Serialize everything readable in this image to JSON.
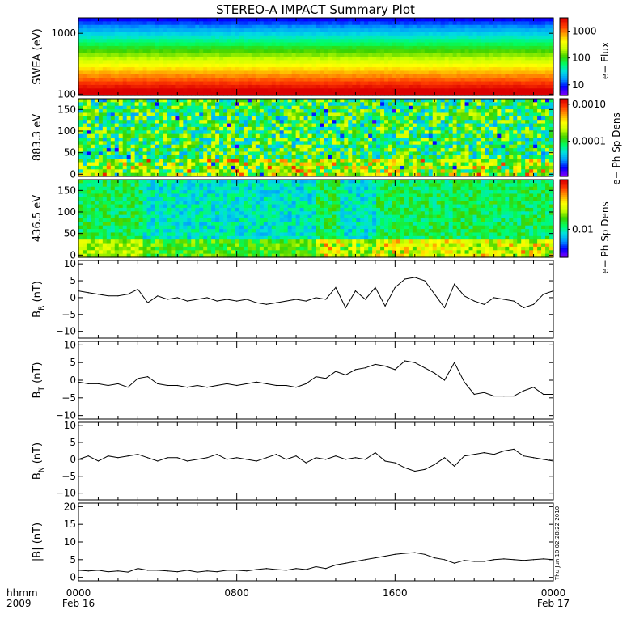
{
  "title": "STEREO-A IMPACT Summary Plot",
  "stamp": "Thu Jun 10 02:28:22 2010",
  "x_axis": {
    "row1_label": "hhmm",
    "row2_label": "2009",
    "ticks": [
      {
        "hours": 0,
        "time": "0000",
        "date": "Feb 16"
      },
      {
        "hours": 8,
        "time": "0800",
        "date": ""
      },
      {
        "hours": 16,
        "time": "1600",
        "date": ""
      },
      {
        "hours": 24,
        "time": "0000",
        "date": "Feb 17"
      }
    ],
    "range_hours": [
      0,
      24
    ]
  },
  "colors": {
    "spectrogram_scale": [
      "#7800ff",
      "#0000ff",
      "#0096ff",
      "#00e0e0",
      "#00ff64",
      "#3cd200",
      "#c8ff00",
      "#ffff00",
      "#ffa000",
      "#ff3c00",
      "#dc0000"
    ]
  },
  "chart_data": [
    {
      "type": "heatmap",
      "id": "swea",
      "ylabel": "SWEA (eV)",
      "ylim": [
        95,
        1800
      ],
      "yscale": "log",
      "ytick_labels": [
        "1000",
        "100"
      ],
      "ytick_values": [
        1000,
        100
      ],
      "colorbar_label": "e− Flux",
      "colorbar_ticks": [
        "1000",
        "100",
        "10"
      ],
      "colorbar_tick_values": [
        3,
        2,
        1
      ],
      "colorbar_range": [
        0.6,
        3.5
      ]
    },
    {
      "type": "heatmap",
      "id": "pad883",
      "ylabel": "883.3 eV",
      "ylim": [
        -5,
        175
      ],
      "ytick_labels": [
        "150",
        "100",
        "50",
        "0"
      ],
      "ytick_values": [
        150,
        100,
        50,
        0
      ],
      "colorbar_label": "e− Ph Sp Dens",
      "colorbar_ticks": [
        "0.0010",
        "0.0001"
      ],
      "colorbar_tick_values": [
        -3,
        -4
      ],
      "colorbar_range": [
        -4.95,
        -2.85
      ]
    },
    {
      "type": "heatmap",
      "id": "pad436",
      "ylabel": "436.5 eV",
      "ylim": [
        -5,
        175
      ],
      "ytick_labels": [
        "150",
        "100",
        "50",
        "0"
      ],
      "ytick_values": [
        150,
        100,
        50,
        0
      ],
      "colorbar_label": "e− Ph Sp Dens",
      "colorbar_ticks": [
        "0.01"
      ],
      "colorbar_tick_values": [
        -2
      ],
      "colorbar_range": [
        -2.45,
        -1.2
      ]
    },
    {
      "type": "line",
      "id": "br",
      "ylabel_main": "B",
      "ylabel_sub": "R",
      "ylabel_unit": " (nT)",
      "ylim": [
        -12,
        11
      ],
      "ytick_labels": [
        "10",
        "5",
        "0",
        "−5",
        "−10"
      ],
      "ytick_values": [
        10,
        5,
        0,
        -5,
        -10
      ],
      "x": [
        0,
        0.5,
        1,
        1.5,
        2,
        2.5,
        3,
        3.5,
        4,
        4.5,
        5,
        5.5,
        6,
        6.5,
        7,
        7.5,
        8,
        8.5,
        9,
        9.5,
        10,
        10.5,
        11,
        11.5,
        12,
        12.5,
        13,
        13.5,
        14,
        14.5,
        15,
        15.5,
        16,
        16.5,
        17,
        17.5,
        18,
        18.5,
        19,
        19.5,
        20,
        20.5,
        21,
        21.5,
        22,
        22.5,
        23,
        23.5,
        24
      ],
      "y": [
        2,
        1.5,
        1,
        0.5,
        0.5,
        1,
        2.5,
        -1.5,
        0.5,
        -0.5,
        0,
        -1,
        -0.5,
        0,
        -1,
        -0.5,
        -1,
        -0.5,
        -1.5,
        -2,
        -1.5,
        -1,
        -0.5,
        -1,
        0,
        -0.5,
        3,
        -3,
        2,
        -0.5,
        3,
        -2.5,
        3,
        5.5,
        6,
        5,
        1,
        -3,
        4,
        0.5,
        -1,
        -2,
        0,
        -0.5,
        -1,
        -3,
        -2,
        1,
        2
      ]
    },
    {
      "type": "line",
      "id": "bt",
      "ylabel_main": "B",
      "ylabel_sub": "T",
      "ylabel_unit": " (nT)",
      "ylim": [
        -11,
        11
      ],
      "ytick_labels": [
        "10",
        "5",
        "0",
        "−5",
        "−10"
      ],
      "ytick_values": [
        10,
        5,
        0,
        -5,
        -10
      ],
      "x": [
        0,
        0.5,
        1,
        1.5,
        2,
        2.5,
        3,
        3.5,
        4,
        4.5,
        5,
        5.5,
        6,
        6.5,
        7,
        7.5,
        8,
        8.5,
        9,
        9.5,
        10,
        10.5,
        11,
        11.5,
        12,
        12.5,
        13,
        13.5,
        14,
        14.5,
        15,
        15.5,
        16,
        16.5,
        17,
        17.5,
        18,
        18.5,
        19,
        19.5,
        20,
        20.5,
        21,
        21.5,
        22,
        22.5,
        23,
        23.5,
        24
      ],
      "y": [
        -0.5,
        -1,
        -1,
        -1.5,
        -1,
        -2,
        0.5,
        1,
        -1,
        -1.5,
        -1.5,
        -2,
        -1.5,
        -2,
        -1.5,
        -1,
        -1.5,
        -1,
        -0.5,
        -1,
        -1.5,
        -1.5,
        -2,
        -1,
        1,
        0.5,
        2.5,
        1.5,
        3,
        3.5,
        4.5,
        4,
        3,
        5.5,
        5,
        3.5,
        2,
        0,
        5,
        -0.5,
        -4,
        -3.5,
        -4.5,
        -4.5,
        -4.5,
        -3,
        -2,
        -4,
        -4
      ]
    },
    {
      "type": "line",
      "id": "bn",
      "ylabel_main": "B",
      "ylabel_sub": "N",
      "ylabel_unit": " (nT)",
      "ylim": [
        -12,
        11
      ],
      "ytick_labels": [
        "10",
        "5",
        "0",
        "−5",
        "−10"
      ],
      "ytick_values": [
        10,
        5,
        0,
        -5,
        -10
      ],
      "x": [
        0,
        0.5,
        1,
        1.5,
        2,
        2.5,
        3,
        3.5,
        4,
        4.5,
        5,
        5.5,
        6,
        6.5,
        7,
        7.5,
        8,
        8.5,
        9,
        9.5,
        10,
        10.5,
        11,
        11.5,
        12,
        12.5,
        13,
        13.5,
        14,
        14.5,
        15,
        15.5,
        16,
        16.5,
        17,
        17.5,
        18,
        18.5,
        19,
        19.5,
        20,
        20.5,
        21,
        21.5,
        22,
        22.5,
        23,
        23.5,
        24
      ],
      "y": [
        0,
        1,
        -0.5,
        1,
        0.5,
        1,
        1.5,
        0.5,
        -0.5,
        0.5,
        0.5,
        -0.5,
        0,
        0.5,
        1.5,
        0,
        0.5,
        0,
        -0.5,
        0.5,
        1.5,
        0,
        1,
        -1,
        0.5,
        0,
        1,
        0,
        0.5,
        0,
        2,
        -0.5,
        -1,
        -2.5,
        -3.5,
        -3,
        -1.5,
        0.5,
        -2,
        1,
        1.5,
        2,
        1.5,
        2.5,
        3,
        1,
        0.5,
        0,
        -0.5
      ]
    },
    {
      "type": "line",
      "id": "bmag",
      "ylabel_main": "|B|",
      "ylabel_sub": "",
      "ylabel_unit": " (nT)",
      "ylim": [
        -1,
        21
      ],
      "ytick_labels": [
        "20",
        "15",
        "10",
        "5",
        "0"
      ],
      "ytick_values": [
        20,
        15,
        10,
        5,
        0
      ],
      "x": [
        0,
        0.5,
        1,
        1.5,
        2,
        2.5,
        3,
        3.5,
        4,
        4.5,
        5,
        5.5,
        6,
        6.5,
        7,
        7.5,
        8,
        8.5,
        9,
        9.5,
        10,
        10.5,
        11,
        11.5,
        12,
        12.5,
        13,
        13.5,
        14,
        14.5,
        15,
        15.5,
        16,
        16.5,
        17,
        17.5,
        18,
        18.5,
        19,
        19.5,
        20,
        20.5,
        21,
        21.5,
        22,
        22.5,
        23,
        23.5,
        24
      ],
      "y": [
        2,
        1.8,
        2,
        1.6,
        1.8,
        1.5,
        2.5,
        2,
        2,
        1.8,
        1.6,
        2,
        1.5,
        1.8,
        1.6,
        2,
        2,
        1.8,
        2.2,
        2.5,
        2.2,
        2,
        2.5,
        2.2,
        3,
        2.5,
        3.5,
        4,
        4.5,
        5,
        5.5,
        6,
        6.5,
        6.8,
        7,
        6.5,
        5.5,
        5,
        4,
        4.8,
        4.5,
        4.5,
        5,
        5.2,
        5,
        4.8,
        5,
        5.2,
        5
      ]
    }
  ]
}
